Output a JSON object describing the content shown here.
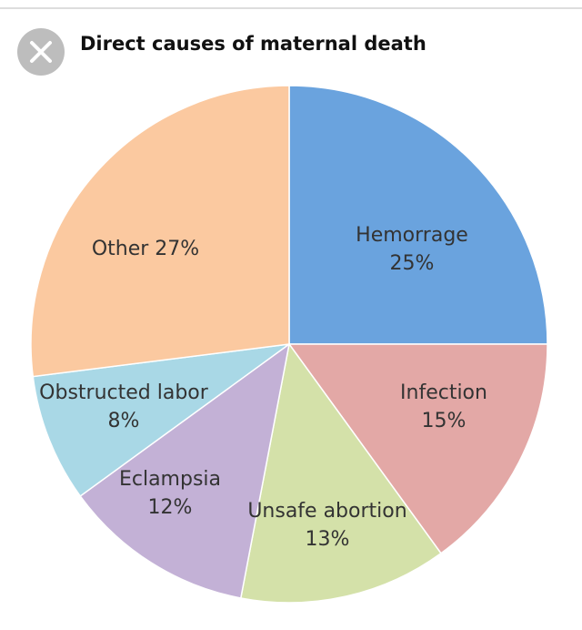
{
  "chart_data": {
    "type": "pie",
    "title": "Direct causes of maternal death",
    "categories": [
      "Hemorrage",
      "Infection",
      "Unsafe abortion",
      "Eclampsia",
      "Obstructed labor",
      "Other"
    ],
    "values": [
      25,
      15,
      13,
      12,
      8,
      27
    ],
    "value_labels": [
      "25%",
      "15%",
      "13%",
      "12%",
      "8%",
      "27%"
    ],
    "colors": [
      "#6aa3de",
      "#e3a8a6",
      "#d4e1a9",
      "#c3b1d6",
      "#a9d8e6",
      "#fbc9a0"
    ]
  }
}
